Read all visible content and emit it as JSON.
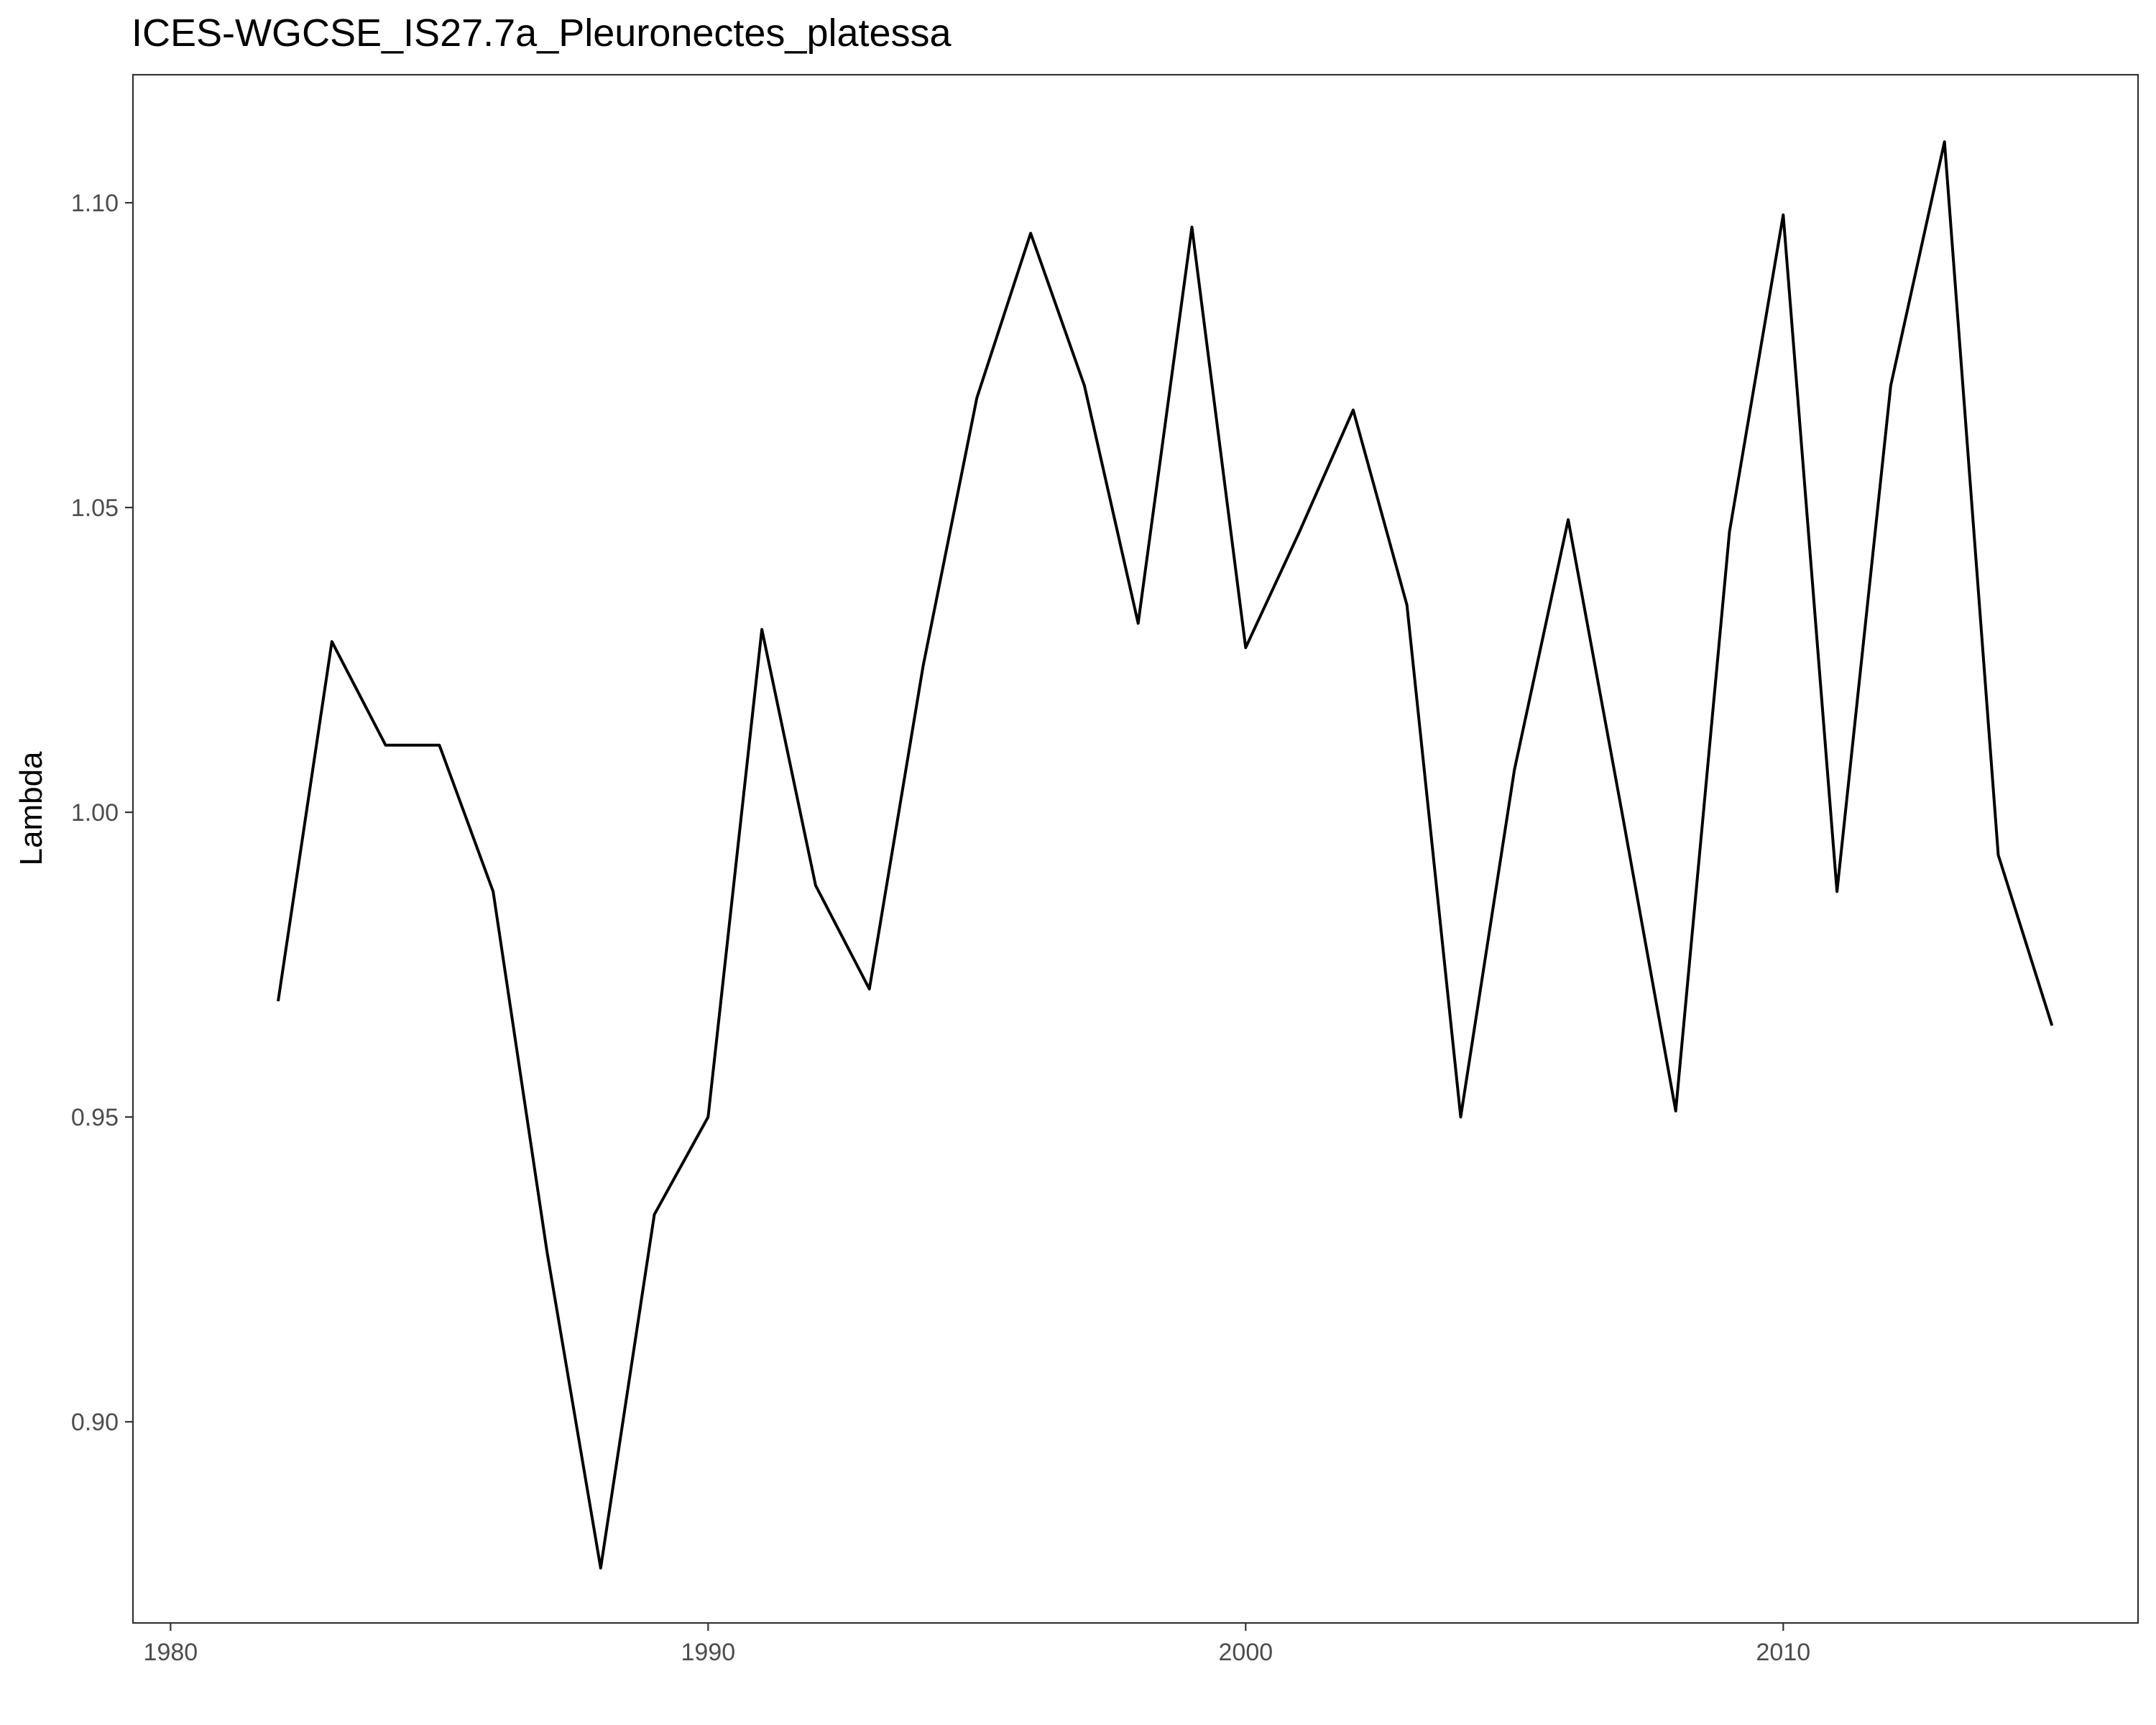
{
  "chart_data": {
    "type": "line",
    "title": "ICES-WGCSE_IS27.7a_Pleuronectes_platessa",
    "xlabel": "",
    "ylabel": "Lambda",
    "xlim": [
      1979.3,
      2016.6
    ],
    "ylim": [
      0.867,
      1.121
    ],
    "x_ticks": [
      1980,
      1990,
      2000,
      2010
    ],
    "x_tick_labels": [
      "1980",
      "1990",
      "2000",
      "2010"
    ],
    "y_ticks": [
      0.9,
      0.95,
      1.0,
      1.05,
      1.1
    ],
    "y_tick_labels": [
      "0.90",
      "0.95",
      "1.00",
      "1.05",
      "1.10"
    ],
    "grid": false,
    "legend": "none",
    "line_color": "#000000",
    "series": [
      {
        "x": [
          1982,
          1983,
          1984,
          1985,
          1986,
          1987,
          1988,
          1989,
          1990,
          1991,
          1992,
          1993,
          1994,
          1995,
          1996,
          1997,
          1998,
          1999,
          2000,
          2001,
          2002,
          2003,
          2004,
          2005,
          2006,
          2007,
          2008,
          2009,
          2010,
          2011,
          2012,
          2013,
          2014,
          2015
        ],
        "y": [
          0.969,
          1.028,
          1.011,
          1.011,
          0.987,
          0.928,
          0.876,
          0.934,
          0.95,
          1.03,
          0.988,
          0.971,
          1.024,
          1.068,
          1.095,
          1.07,
          1.031,
          1.096,
          1.027,
          1.046,
          1.066,
          1.034,
          0.95,
          1.007,
          1.048,
          1.0,
          0.951,
          1.046,
          1.098,
          0.987,
          1.07,
          1.11,
          0.993,
          0.965
        ]
      }
    ]
  }
}
